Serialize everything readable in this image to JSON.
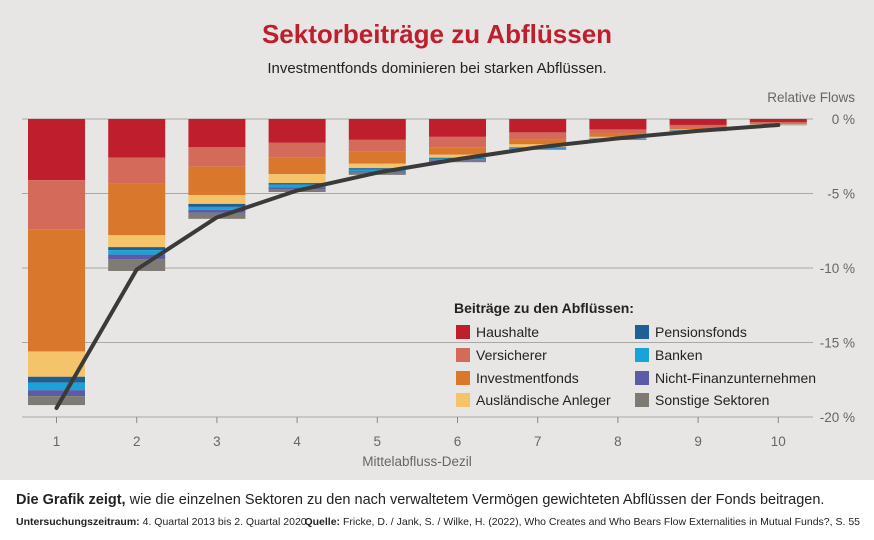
{
  "chart_data": {
    "type": "bar",
    "stacked": true,
    "title": "Sektorbeiträge zu Abflüssen",
    "subtitle": "Investmentfonds dominieren bei starken Abflüssen.",
    "xlabel": "Mittelabfluss-Dezil",
    "ylabel": "Relative Flows",
    "categories": [
      "1",
      "2",
      "3",
      "4",
      "5",
      "6",
      "7",
      "8",
      "9",
      "10"
    ],
    "ylim": [
      -20,
      0
    ],
    "yticks": [
      0,
      -5,
      -10,
      -15,
      -20
    ],
    "ytick_labels": [
      "0 %",
      "-5 %",
      "-10 %",
      "-15 %",
      "-20 %"
    ],
    "grid": true,
    "legend_title": "Beiträge zu den Abflüssen:",
    "legend_position": "center-right",
    "series": [
      {
        "name": "Haushalte",
        "color": "#bf1e2d",
        "values": [
          -4.1,
          -2.6,
          -1.9,
          -1.6,
          -1.4,
          -1.2,
          -0.9,
          -0.7,
          -0.4,
          -0.2
        ]
      },
      {
        "name": "Versicherer",
        "color": "#d46a5a",
        "values": [
          -3.3,
          -1.7,
          -1.3,
          -1.0,
          -0.8,
          -0.7,
          -0.5,
          -0.3,
          -0.2,
          -0.1
        ]
      },
      {
        "name": "Investmentfonds",
        "color": "#d9782c",
        "values": [
          -8.2,
          -3.5,
          -1.9,
          -1.1,
          -0.8,
          -0.5,
          -0.3,
          -0.2,
          -0.1,
          -0.05
        ]
      },
      {
        "name": "Ausländische Anleger",
        "color": "#f5c46a",
        "values": [
          -1.7,
          -0.8,
          -0.6,
          -0.6,
          -0.3,
          -0.2,
          -0.2,
          -0.1,
          -0.05,
          -0.03
        ]
      },
      {
        "name": "Pensionsfonds",
        "color": "#1f5f96",
        "values": [
          -0.4,
          -0.2,
          -0.2,
          -0.1,
          -0.1,
          -0.05,
          -0.04,
          -0.03,
          -0.02,
          -0.01
        ]
      },
      {
        "name": "Banken",
        "color": "#1aa3d7",
        "values": [
          -0.5,
          -0.3,
          -0.2,
          -0.2,
          -0.1,
          -0.1,
          -0.05,
          -0.03,
          -0.02,
          -0.01
        ]
      },
      {
        "name": "Nicht-Finanzunternehmen",
        "color": "#5b5ba6",
        "values": [
          -0.4,
          -0.3,
          -0.2,
          -0.1,
          -0.1,
          -0.05,
          -0.03,
          -0.02,
          -0.01,
          -0.01
        ]
      },
      {
        "name": "Sonstige Sektoren",
        "color": "#7e7b75",
        "values": [
          -0.6,
          -0.8,
          -0.4,
          -0.2,
          -0.15,
          -0.1,
          -0.05,
          -0.03,
          -0.02,
          -0.01
        ]
      }
    ],
    "line": {
      "color": "#3a3a3a",
      "values": [
        -19.4,
        -10.1,
        -6.6,
        -4.8,
        -3.6,
        -2.7,
        -1.9,
        -1.3,
        -0.8,
        -0.4
      ]
    }
  },
  "footer": {
    "caption_bold": "Die Grafik zeigt,",
    "caption_rest": " wie die einzelnen Sektoren zu den nach verwaltetem Vermögen gewichteten Abflüssen der Fonds beitragen.",
    "period_label": "Untersuchungszeitraum:",
    "period_value": " 4. Quartal 2013 bis 2. Quartal 2020",
    "source_label": "Quelle:",
    "source_value": " Fricke, D. / Jank, S. / Wilke, H. (2022), Who Creates and Who Bears Flow Externalities in Mutual Funds?, S. 55"
  },
  "colors": {
    "title": "#bf1e2d",
    "background": "#e7e6e4",
    "grid": "#a9a8a5"
  }
}
